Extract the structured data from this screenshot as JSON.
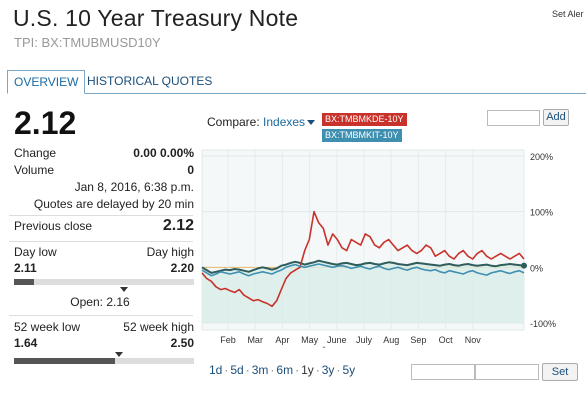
{
  "header": {
    "title": "U.S. 10 Year Treasury Note",
    "subtitle": "TPI: BX:TMUBMUSD10Y",
    "set_alert": "Set Aler"
  },
  "tabs": [
    {
      "label": "OVERVIEW",
      "active": true
    },
    {
      "label": "HISTORICAL QUOTES",
      "active": false
    }
  ],
  "quote": {
    "price": "2.12",
    "change_label": "Change",
    "change_value": "0.00 0.00%",
    "volume_label": "Volume",
    "volume_value": "0",
    "timestamp": "Jan 8, 2016, 6:38 p.m.",
    "delay_note": "Quotes are delayed by 20 min",
    "prev_close_label": "Previous close",
    "prev_close_value": "2.12",
    "day_low_label": "Day low",
    "day_high_label": "Day high",
    "day_low": "2.11",
    "day_high": "2.20",
    "day_position": 0.11,
    "open_label": "Open: 2.16",
    "wk_low_label": "52 week low",
    "wk_high_label": "52 week high",
    "wk_low": "1.64",
    "wk_high": "2.50",
    "wk_position": 0.56
  },
  "compare": {
    "label": "Compare:",
    "dropdown": "Indexes",
    "tags": [
      "BX:TMBMKDE-10Y",
      "BX:TMBMKIT-10Y"
    ],
    "add_label": "Add",
    "input_value": ""
  },
  "timeframes": [
    "1d",
    "5d",
    "3m",
    "6m",
    "1y",
    "3y",
    "5y"
  ],
  "selected_timeframe": "1y",
  "range_inputs": {
    "from": "",
    "to": "",
    "set_label": "Set"
  },
  "colors": {
    "primary_series": "#2f5d5c",
    "de_series": "#c8322a",
    "it_series": "#3f8fb0",
    "area_fill": "#d9ece8"
  },
  "chart_data": {
    "type": "line",
    "x_labels": [
      "Feb",
      "Mar",
      "Apr",
      "May",
      "June",
      "July",
      "Aug",
      "Sep",
      "Oct",
      "Nov"
    ],
    "y_ticks": [
      "200%",
      "100%",
      "0%",
      "-100%"
    ],
    "ylim": [
      -100,
      200
    ],
    "series": [
      {
        "name": "BX:TMUBMUSD10Y",
        "values": [
          0,
          -5,
          -10,
          -8,
          -6,
          -4,
          -5,
          -3,
          -4,
          -6,
          -8,
          -5,
          -2,
          0,
          -2,
          -4,
          -2,
          3,
          5,
          8,
          10,
          8,
          5,
          7,
          9,
          12,
          10,
          8,
          6,
          5,
          7,
          8,
          6,
          4,
          5,
          7,
          8,
          6,
          5,
          7,
          9,
          8,
          6,
          5,
          4,
          6,
          8,
          7,
          6,
          5,
          4,
          3,
          5,
          6,
          4,
          3,
          5,
          6,
          4,
          3,
          4,
          5,
          3,
          2,
          4,
          5,
          6,
          5,
          4,
          3
        ]
      },
      {
        "name": "BX:TMBMKDE-10Y",
        "values": [
          -10,
          -20,
          -25,
          -35,
          -40,
          -38,
          -42,
          -45,
          -40,
          -50,
          -55,
          -60,
          -58,
          -62,
          -65,
          -70,
          -60,
          -40,
          -20,
          -10,
          -5,
          0,
          30,
          50,
          100,
          80,
          70,
          40,
          60,
          50,
          35,
          30,
          50,
          45,
          40,
          60,
          55,
          40,
          35,
          45,
          50,
          40,
          30,
          35,
          40,
          30,
          25,
          30,
          40,
          35,
          20,
          25,
          30,
          20,
          15,
          25,
          30,
          20,
          15,
          25,
          30,
          20,
          15,
          20,
          25,
          20,
          15,
          20,
          25,
          15
        ]
      },
      {
        "name": "BX:TMBMKIT-10Y",
        "values": [
          -5,
          -10,
          -15,
          -12,
          -8,
          -10,
          -12,
          -10,
          -8,
          -12,
          -15,
          -12,
          -10,
          -8,
          -10,
          -12,
          -8,
          -5,
          0,
          3,
          5,
          2,
          0,
          2,
          4,
          6,
          4,
          2,
          0,
          2,
          3,
          1,
          -2,
          0,
          2,
          -1,
          -3,
          0,
          2,
          -2,
          -4,
          -2,
          0,
          -3,
          -5,
          -2,
          0,
          -3,
          -5,
          -6,
          -4,
          -8,
          -10,
          -6,
          -8,
          -10,
          -12,
          -8,
          -6,
          -10,
          -12,
          -14,
          -10,
          -8,
          -6,
          -9,
          -11,
          -8,
          -6,
          -10
        ]
      }
    ]
  }
}
